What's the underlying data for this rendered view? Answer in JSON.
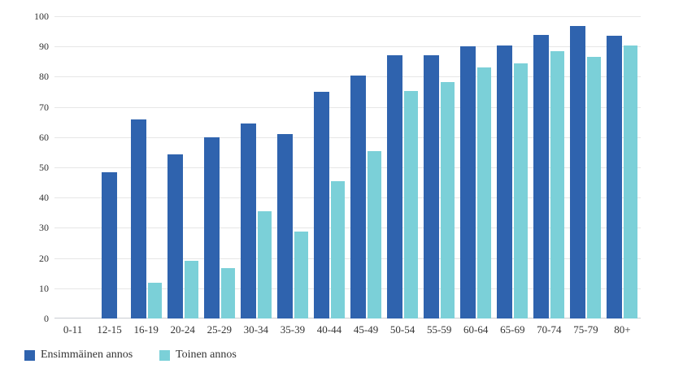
{
  "chart_data": {
    "type": "bar",
    "title": "",
    "categories": [
      "0-11",
      "12-15",
      "16-19",
      "20-24",
      "25-29",
      "30-34",
      "35-39",
      "40-44",
      "45-49",
      "50-54",
      "55-59",
      "60-64",
      "65-69",
      "70-74",
      "75-79",
      "80+"
    ],
    "series": [
      {
        "name": "Ensimmäinen annos",
        "color": "#2f63ae",
        "values": [
          0,
          48.5,
          65.8,
          54.2,
          60.0,
          64.4,
          61.0,
          74.9,
          80.4,
          87.0,
          87.0,
          90.1,
          90.4,
          93.9,
          96.7,
          93.5
        ]
      },
      {
        "name": "Toinen annos",
        "color": "#7bd0d8",
        "values": [
          0,
          0,
          11.8,
          19.0,
          16.7,
          35.6,
          28.9,
          45.3,
          55.3,
          75.4,
          78.1,
          83.0,
          84.5,
          88.4,
          86.6,
          90.2
        ]
      }
    ],
    "xlabel": "",
    "ylabel": "",
    "ylim": [
      0,
      100
    ],
    "y_ticks": [
      0,
      10,
      20,
      30,
      40,
      50,
      60,
      70,
      80,
      90,
      100
    ],
    "grid": true,
    "legend_position": "bottom-left"
  },
  "colors": {
    "background": "#ffffff",
    "gridline": "#e6e6e6",
    "axis_line": "#c9ccd1",
    "label_text": "#333333"
  }
}
